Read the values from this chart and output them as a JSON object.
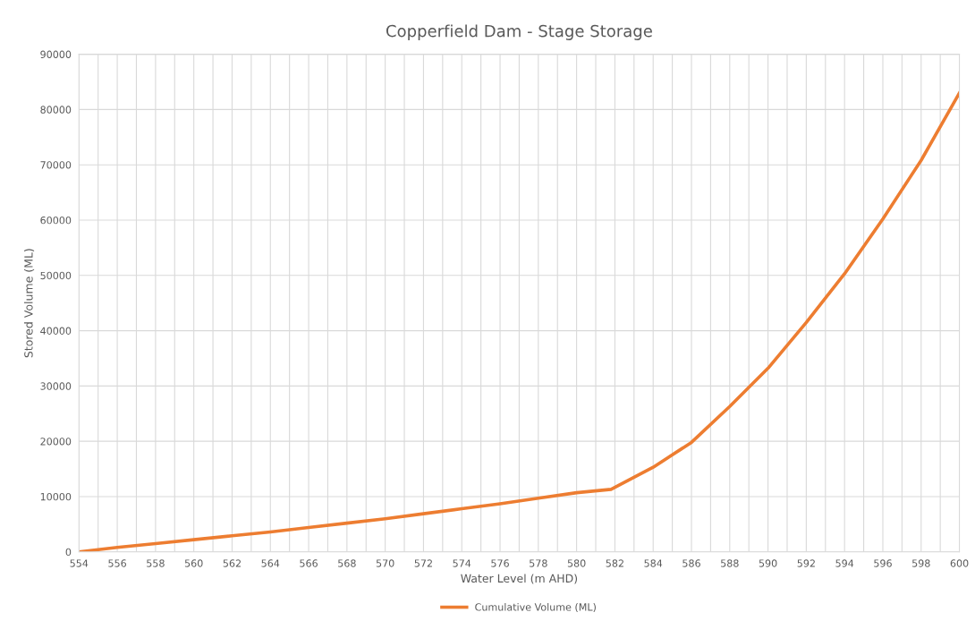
{
  "chart_data": {
    "type": "line",
    "title": "Copperfield Dam - Stage Storage",
    "xlabel": "Water Level (m AHD)",
    "ylabel": "Stored Volume (ML)",
    "x": [
      554,
      556,
      558,
      560,
      562,
      564,
      566,
      568,
      570,
      572,
      574,
      576,
      578,
      580,
      581.8,
      584,
      586,
      588,
      590,
      592,
      594,
      596,
      598,
      600
    ],
    "series": [
      {
        "name": "Cumulative Volume (ML)",
        "color": "#ed7d31",
        "values": [
          0,
          800,
          1500,
          2200,
          2900,
          3600,
          4400,
          5200,
          6000,
          6900,
          7800,
          8700,
          9700,
          10700,
          11300,
          15300,
          19800,
          26300,
          33200,
          41500,
          50300,
          60200,
          70800,
          83000
        ]
      }
    ],
    "xlim": [
      554,
      600
    ],
    "xticks": [
      554,
      {
        "value": 555,
        "label": null
      },
      556,
      {
        "value": 557,
        "label": null
      },
      558,
      {
        "value": 559,
        "label": null
      },
      560,
      {
        "value": 561,
        "label": null
      },
      562,
      {
        "value": 563,
        "label": null
      },
      564,
      {
        "value": 565,
        "label": null
      },
      566,
      {
        "value": 567,
        "label": null
      },
      568,
      {
        "value": 569,
        "label": null
      },
      570,
      {
        "value": 571,
        "label": null
      },
      572,
      {
        "value": 573,
        "label": null
      },
      574,
      {
        "value": 575,
        "label": null
      },
      576,
      {
        "value": 577,
        "label": null
      },
      578,
      {
        "value": 579,
        "label": null
      },
      580,
      {
        "value": 581,
        "label": null
      },
      582,
      {
        "value": 583,
        "label": null
      },
      584,
      {
        "value": 585,
        "label": null
      },
      586,
      {
        "value": 587,
        "label": null
      },
      588,
      {
        "value": 589,
        "label": null
      },
      590,
      {
        "value": 591,
        "label": null
      },
      592,
      {
        "value": 593,
        "label": null
      },
      594,
      {
        "value": 595,
        "label": null
      },
      596,
      {
        "value": 597,
        "label": null
      },
      598,
      {
        "value": 599,
        "label": null
      },
      600
    ],
    "ylim": [
      0,
      90000
    ],
    "yticks": [
      0,
      10000,
      20000,
      30000,
      40000,
      50000,
      60000,
      70000,
      80000,
      90000
    ],
    "grid": true,
    "legend": "bottom",
    "marker": "none",
    "line_style": "solid"
  }
}
